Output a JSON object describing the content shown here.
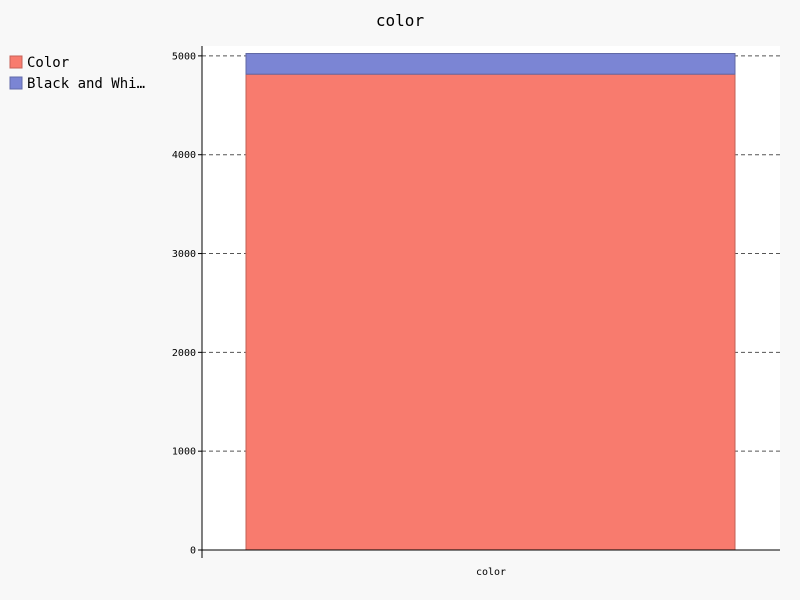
{
  "chart_data": {
    "type": "bar",
    "stacked": true,
    "title": "color",
    "categories": [
      "color"
    ],
    "series": [
      {
        "name": "Color",
        "values": [
          4815
        ],
        "color": "#F87B6E"
      },
      {
        "name": "Black and Whi…",
        "values": [
          209
        ],
        "color": "#7B85D4"
      }
    ],
    "y_ticks": [
      "0",
      "1000",
      "2000",
      "3000",
      "4000",
      "5000"
    ],
    "ylim": [
      0,
      5100
    ],
    "grid": true,
    "legend_position": "top-left"
  }
}
